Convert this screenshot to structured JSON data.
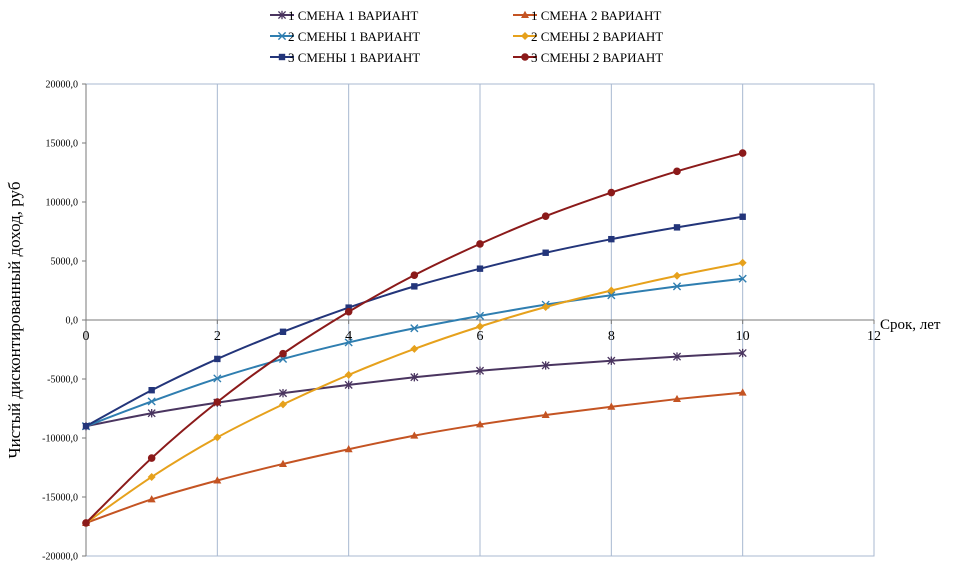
{
  "chart_data": {
    "type": "line",
    "xlabel": "Срок, лет",
    "ylabel": "Чистый дисконтированный доход, руб",
    "xlim": [
      0,
      12
    ],
    "ylim": [
      -20000,
      20000
    ],
    "x_ticks": [
      0,
      2,
      4,
      6,
      8,
      10,
      12
    ],
    "y_ticks": [
      {
        "v": 20000,
        "label": "20000,0"
      },
      {
        "v": 15000,
        "label": "15000,0"
      },
      {
        "v": 10000,
        "label": "10000,0"
      },
      {
        "v": 5000,
        "label": "5000,0"
      },
      {
        "v": 0,
        "label": "0,0"
      },
      {
        "v": -5000,
        "label": "-5000,0"
      },
      {
        "v": -10000,
        "label": "-10000,0"
      },
      {
        "v": -15000,
        "label": "-15000,0"
      },
      {
        "v": -20000,
        "label": "-20000,0"
      }
    ],
    "grid": "vertical",
    "legend_position": "top",
    "x": [
      0,
      1,
      2,
      3,
      4,
      5,
      6,
      7,
      8,
      9,
      10
    ],
    "series": [
      {
        "name": "1 СМЕНА 1 ВАРИАНТ",
        "color": "#4a3560",
        "marker": "asterisk",
        "values": [
          -9000,
          -7900,
          -7000,
          -6200,
          -5500,
          -4850,
          -4300,
          -3850,
          -3450,
          -3100,
          -2800
        ]
      },
      {
        "name": "1 СМЕНА 2  ВАРИАНТ",
        "color": "#c45423",
        "marker": "triangle",
        "values": [
          -17200,
          -15200,
          -13600,
          -12200,
          -10950,
          -9800,
          -8850,
          -8050,
          -7350,
          -6700,
          -6150
        ]
      },
      {
        "name": "2 СМЕНЫ 1 ВАРИАНТ",
        "color": "#2f7eb0",
        "marker": "x",
        "values": [
          -9000,
          -6900,
          -4950,
          -3300,
          -1900,
          -700,
          350,
          1300,
          2100,
          2850,
          3500
        ]
      },
      {
        "name": "2 СМЕНЫ 2 ВАРИАНТ",
        "color": "#e6a11c",
        "marker": "diamond",
        "values": [
          -17200,
          -13300,
          -9950,
          -7150,
          -4650,
          -2450,
          -550,
          1100,
          2500,
          3750,
          4850
        ]
      },
      {
        "name": "3 СМЕНЫ 1 ВАРИАНТ",
        "color": "#23357a",
        "marker": "square",
        "values": [
          -9000,
          -5950,
          -3300,
          -1000,
          1050,
          2850,
          4350,
          5700,
          6850,
          7850,
          8750
        ]
      },
      {
        "name": "3 СМЕНЫ 2 ВАРИАНТ",
        "color": "#8b1a1a",
        "marker": "circle",
        "values": [
          -17200,
          -11700,
          -6950,
          -2850,
          700,
          3800,
          6450,
          8800,
          10800,
          12600,
          14150
        ]
      }
    ]
  }
}
